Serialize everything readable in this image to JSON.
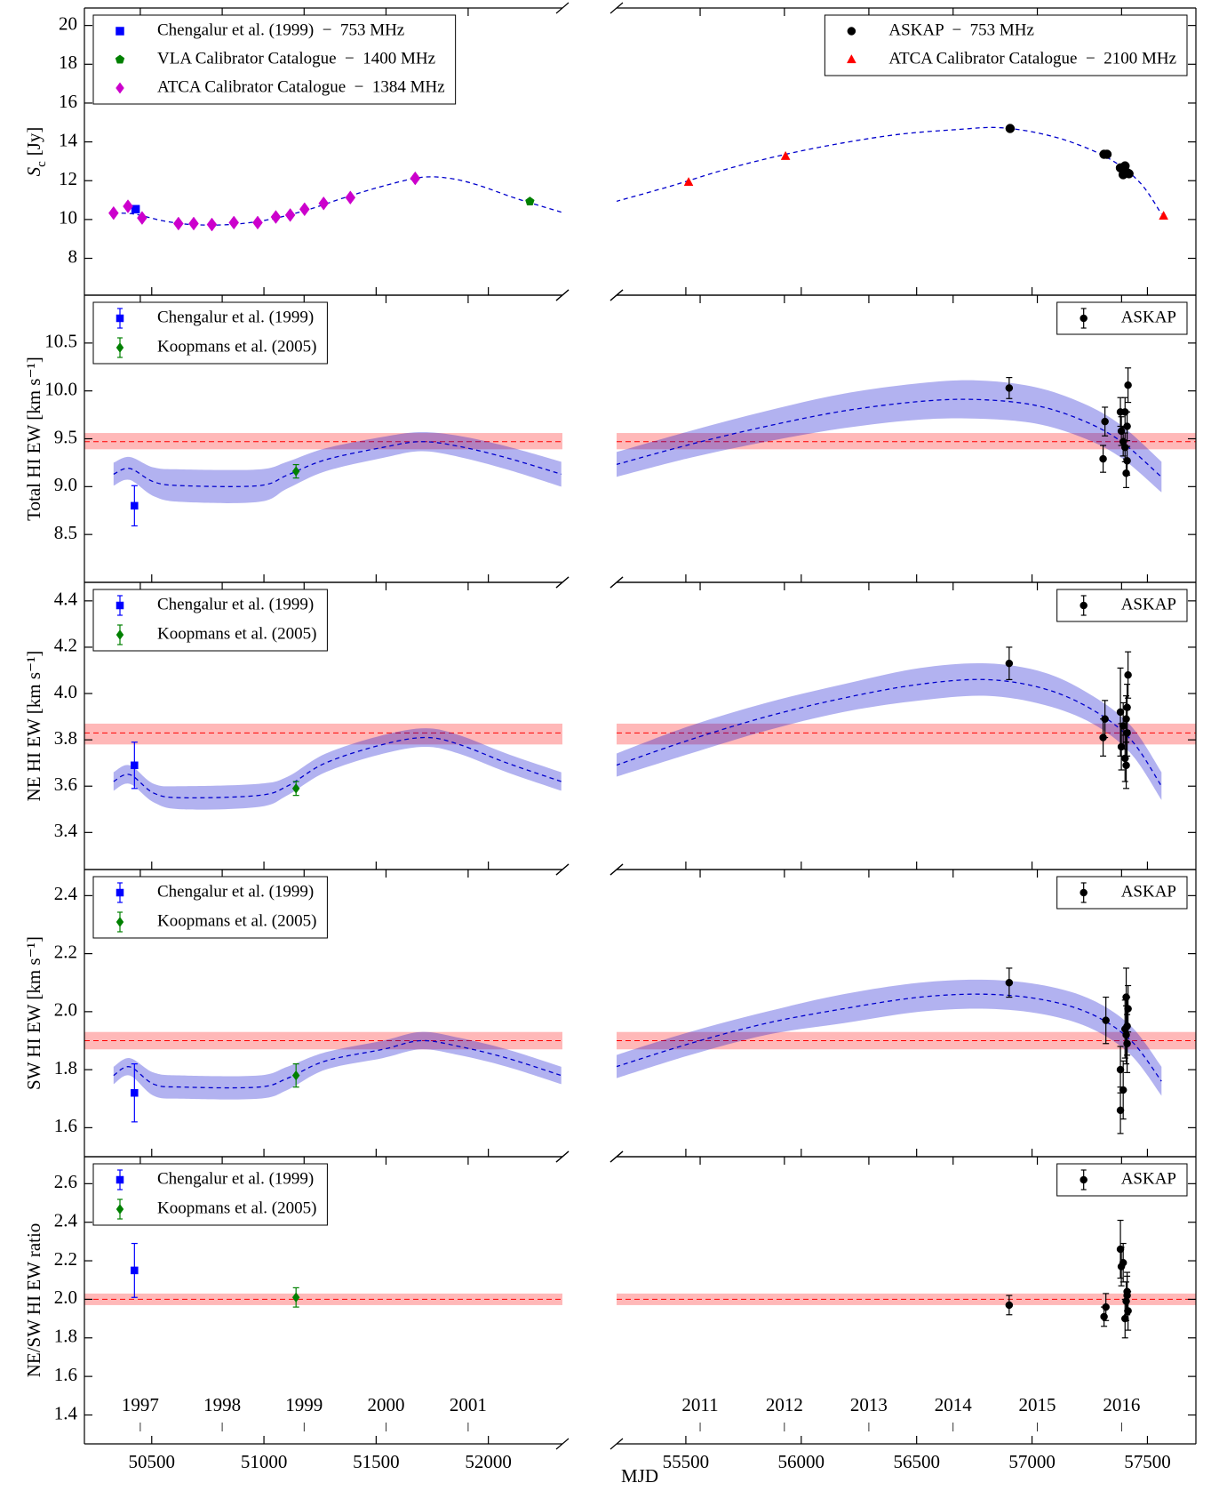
{
  "chart_data": [
    {
      "type": "scatter",
      "xlim": [
        50200,
        52330
      ],
      "ylim": [
        6.1,
        20.9
      ],
      "yticks": [
        8,
        10,
        12,
        14,
        16,
        18,
        20
      ],
      "ylabel": {
        "symbol": "S",
        "subscript": "c",
        "unit": "[Jy]"
      },
      "legend": "upper left",
      "series": [
        {
          "name": "Chengalur et al. (1999)  −  753 MHz",
          "color": "#0000ff",
          "marker": "square",
          "x": [
            50428
          ],
          "values": [
            10.53
          ]
        },
        {
          "name": "VLA Calibrator Catalogue  −  1400 MHz",
          "color": "#008000",
          "marker": "pentagon",
          "x": [
            52185
          ],
          "values": [
            10.93
          ]
        },
        {
          "name": "ATCA Calibrator Catalogue  −  1384 MHz",
          "color": "#cc00cc",
          "marker": "diamond",
          "x": [
            50330,
            50394,
            50457,
            50619,
            50687,
            50768,
            50866,
            50972,
            51053,
            51117,
            51181,
            51266,
            51385,
            51674
          ],
          "values": [
            10.33,
            10.68,
            10.08,
            9.79,
            9.79,
            9.74,
            9.84,
            9.84,
            10.13,
            10.23,
            10.53,
            10.83,
            11.13,
            12.12
          ]
        }
      ],
      "fit": {
        "color": "#0000cc",
        "x": [
          50330,
          50423,
          50551,
          50679,
          50849,
          51019,
          51189,
          51360,
          51530,
          51700,
          51828,
          51955,
          52125,
          52325
        ],
        "values": [
          10.33,
          10.28,
          9.93,
          9.74,
          9.74,
          9.99,
          10.48,
          11.13,
          11.72,
          12.17,
          12.12,
          11.77,
          11.08,
          10.38
        ]
      }
    },
    {
      "type": "scatter",
      "xlim": [
        55200,
        57710
      ],
      "ylim": [
        6.1,
        20.9
      ],
      "legend": "upper right",
      "series": [
        {
          "name": "ASKAP  −  753 MHz",
          "color": "#000000",
          "marker": "circle",
          "x": [
            56905,
            57312,
            57325,
            57383,
            57395,
            57403,
            57412,
            57420
          ],
          "values": [
            14.69,
            13.36,
            13.36,
            12.66,
            12.31,
            12.76,
            12.41,
            12.36
          ]
        },
        {
          "name": "ATCA Calibrator Catalogue  −  2100 MHz",
          "color": "#ff0000",
          "marker": "triangle",
          "x": [
            55512,
            55932,
            57570
          ],
          "values": [
            11.92,
            13.26,
            10.18
          ]
        }
      ],
      "fit": {
        "color": "#0000cc",
        "x": [
          55197,
          55434,
          55683,
          55932,
          56182,
          56431,
          56680,
          56847,
          57013,
          57179,
          57345,
          57470,
          57561
        ],
        "values": [
          10.93,
          11.72,
          12.62,
          13.36,
          13.95,
          14.4,
          14.64,
          14.74,
          14.49,
          13.95,
          13.06,
          11.87,
          10.28
        ]
      }
    },
    {
      "type": "scatter",
      "xlim": [
        50200,
        52330
      ],
      "ylim": [
        8.0,
        11.0
      ],
      "yticks": [
        8.5,
        {
          "value": 9,
          "label": "9.0"
        },
        9.5,
        {
          "value": 10,
          "label": "10.0"
        },
        10.5
      ],
      "ylabel": "Total HI EW [km s⁻¹]",
      "legend": "upper left",
      "series": [
        {
          "name": "Chengalur et al. (1999)",
          "color": "#0000ff",
          "marker": "square",
          "x": [
            50423
          ],
          "values": [
            8.8
          ],
          "errors": [
            0.21
          ]
        },
        {
          "name": "Koopmans et al. (2005)",
          "color": "#008000",
          "marker": "diamond",
          "x": [
            51143
          ],
          "values": [
            9.16
          ],
          "errors": [
            0.07
          ]
        }
      ],
      "fit": {
        "color": "#0000cc",
        "x": [
          50330,
          50402,
          50509,
          50636,
          50977,
          51104,
          51274,
          51530,
          51700,
          51870,
          52083,
          52325
        ],
        "values": [
          9.13,
          9.19,
          9.05,
          9.01,
          9.01,
          9.12,
          9.28,
          9.41,
          9.47,
          9.42,
          9.3,
          9.13
        ],
        "lower": [
          9.01,
          9.07,
          8.9,
          8.84,
          8.84,
          8.98,
          9.16,
          9.3,
          9.37,
          9.31,
          9.18,
          9.0
        ],
        "upper": [
          9.25,
          9.31,
          9.2,
          9.18,
          9.18,
          9.26,
          9.4,
          9.52,
          9.57,
          9.53,
          9.42,
          9.26
        ]
      },
      "reference": {
        "color": "#ff0000",
        "value": 9.47,
        "lower": 9.39,
        "upper": 9.56
      }
    },
    {
      "type": "scatter",
      "xlim": [
        55200,
        57710
      ],
      "ylim": [
        8.0,
        11.0
      ],
      "legend": "upper right",
      "series": [
        {
          "name": "ASKAP",
          "color": "#000000",
          "marker": "circle",
          "x": [
            56901,
            57316,
            57308,
            57383,
            57387,
            57395,
            57403,
            57403,
            57408,
            57412,
            57412,
            57416
          ],
          "values": [
            10.03,
            9.68,
            9.29,
            9.78,
            9.58,
            9.47,
            9.78,
            9.41,
            9.14,
            9.27,
            9.63,
            10.06
          ],
          "errors": [
            0.11,
            0.15,
            0.14,
            0.15,
            0.15,
            0.15,
            0.15,
            0.15,
            0.15,
            0.15,
            0.15,
            0.18
          ]
        }
      ],
      "fit": {
        "color": "#0000cc",
        "x": [
          55197,
          55517,
          55849,
          56182,
          56514,
          56763,
          57013,
          57221,
          57387,
          57561
        ],
        "values": [
          9.23,
          9.44,
          9.63,
          9.79,
          9.89,
          9.91,
          9.85,
          9.69,
          9.47,
          9.1
        ],
        "lower": [
          9.1,
          9.3,
          9.47,
          9.61,
          9.7,
          9.71,
          9.66,
          9.51,
          9.3,
          8.94
        ],
        "upper": [
          9.36,
          9.58,
          9.79,
          9.97,
          10.08,
          10.11,
          10.04,
          9.87,
          9.64,
          9.26
        ]
      },
      "reference": {
        "color": "#ff0000",
        "value": 9.47,
        "lower": 9.39,
        "upper": 9.56
      }
    },
    {
      "type": "scatter",
      "xlim": [
        50200,
        52330
      ],
      "ylim": [
        3.24,
        4.48
      ],
      "yticks": [
        3.4,
        3.6,
        3.8,
        {
          "value": 4,
          "label": "4.0"
        },
        4.2,
        4.4
      ],
      "ylabel": "NE HI EW [km s⁻¹]",
      "legend": "upper left",
      "series": [
        {
          "name": "Chengalur et al. (1999)",
          "color": "#0000ff",
          "marker": "square",
          "x": [
            50423
          ],
          "values": [
            3.69
          ],
          "errors": [
            0.1
          ]
        },
        {
          "name": "Koopmans et al. (2005)",
          "color": "#008000",
          "marker": "diamond",
          "x": [
            51143
          ],
          "values": [
            3.59
          ],
          "errors": [
            0.03
          ]
        }
      ],
      "fit": {
        "color": "#0000cc",
        "x": [
          50330,
          50402,
          50509,
          50636,
          50977,
          51104,
          51274,
          51530,
          51721,
          51870,
          52083,
          52325
        ],
        "values": [
          3.62,
          3.65,
          3.57,
          3.55,
          3.56,
          3.6,
          3.7,
          3.78,
          3.81,
          3.78,
          3.7,
          3.62
        ],
        "lower": [
          3.58,
          3.61,
          3.53,
          3.5,
          3.51,
          3.56,
          3.66,
          3.74,
          3.77,
          3.74,
          3.66,
          3.58
        ],
        "upper": [
          3.66,
          3.69,
          3.61,
          3.6,
          3.61,
          3.64,
          3.74,
          3.82,
          3.85,
          3.82,
          3.74,
          3.66
        ]
      },
      "reference": {
        "color": "#ff0000",
        "value": 3.83,
        "lower": 3.78,
        "upper": 3.87
      }
    },
    {
      "type": "scatter",
      "xlim": [
        55200,
        57710
      ],
      "ylim": [
        3.24,
        4.48
      ],
      "legend": "upper right",
      "series": [
        {
          "name": "ASKAP",
          "color": "#000000",
          "marker": "circle",
          "x": [
            56901,
            57316,
            57308,
            57383,
            57387,
            57395,
            57403,
            57408,
            57412,
            57412,
            57416,
            57408
          ],
          "values": [
            4.13,
            3.89,
            3.81,
            3.92,
            3.77,
            3.86,
            3.72,
            3.89,
            3.94,
            3.83,
            4.08,
            3.69
          ],
          "errors": [
            0.07,
            0.08,
            0.08,
            0.19,
            0.1,
            0.1,
            0.1,
            0.1,
            0.1,
            0.1,
            0.1,
            0.1
          ]
        }
      ],
      "fit": {
        "color": "#0000cc",
        "x": [
          55197,
          55517,
          55849,
          56182,
          56514,
          56805,
          57055,
          57262,
          57429,
          57561
        ],
        "values": [
          3.69,
          3.8,
          3.9,
          3.98,
          4.04,
          4.06,
          4.02,
          3.93,
          3.8,
          3.6
        ],
        "lower": [
          3.64,
          3.74,
          3.84,
          3.92,
          3.97,
          3.99,
          3.95,
          3.87,
          3.74,
          3.54
        ],
        "upper": [
          3.74,
          3.86,
          3.96,
          4.04,
          4.11,
          4.13,
          4.09,
          3.99,
          3.86,
          3.66
        ]
      },
      "reference": {
        "color": "#ff0000",
        "value": 3.83,
        "lower": 3.78,
        "upper": 3.87
      }
    },
    {
      "type": "scatter",
      "xlim": [
        50200,
        52330
      ],
      "ylim": [
        1.5,
        2.49
      ],
      "yticks": [
        1.6,
        1.8,
        {
          "value": 2,
          "label": "2.0"
        },
        2.2,
        2.4
      ],
      "ylabel": "SW HI EW [km s⁻¹]",
      "legend": "upper left",
      "series": [
        {
          "name": "Chengalur et al. (1999)",
          "color": "#0000ff",
          "marker": "square",
          "x": [
            50423
          ],
          "values": [
            1.72
          ],
          "errors": [
            0.1
          ]
        },
        {
          "name": "Koopmans et al. (2005)",
          "color": "#008000",
          "marker": "diamond",
          "x": [
            51143
          ],
          "values": [
            1.78
          ],
          "errors": [
            0.04
          ]
        }
      ],
      "fit": {
        "color": "#0000cc",
        "x": [
          50330,
          50402,
          50509,
          50636,
          50977,
          51104,
          51274,
          51530,
          51700,
          51870,
          52083,
          52325
        ],
        "values": [
          1.78,
          1.81,
          1.75,
          1.74,
          1.74,
          1.77,
          1.83,
          1.87,
          1.9,
          1.88,
          1.84,
          1.78
        ],
        "lower": [
          1.75,
          1.78,
          1.71,
          1.7,
          1.7,
          1.73,
          1.8,
          1.84,
          1.87,
          1.85,
          1.81,
          1.75
        ],
        "upper": [
          1.81,
          1.84,
          1.79,
          1.78,
          1.78,
          1.81,
          1.86,
          1.9,
          1.93,
          1.91,
          1.87,
          1.81
        ]
      },
      "reference": {
        "color": "#ff0000",
        "value": 1.9,
        "lower": 1.87,
        "upper": 1.93
      }
    },
    {
      "type": "scatter",
      "xlim": [
        55200,
        57710
      ],
      "ylim": [
        1.5,
        2.49
      ],
      "legend": "upper right",
      "series": [
        {
          "name": "ASKAP",
          "color": "#000000",
          "marker": "circle",
          "x": [
            56901,
            57320,
            57383,
            57383,
            57395,
            57403,
            57408,
            57412,
            57416,
            57412,
            57408
          ],
          "values": [
            2.1,
            1.97,
            1.8,
            1.66,
            1.73,
            1.94,
            2.05,
            1.95,
            2.01,
            1.89,
            1.92
          ],
          "errors": [
            0.05,
            0.08,
            0.08,
            0.08,
            0.1,
            0.1,
            0.1,
            0.1,
            0.08,
            0.1,
            0.1
          ]
        }
      ],
      "fit": {
        "color": "#0000cc",
        "x": [
          55197,
          55517,
          55849,
          56182,
          56514,
          56805,
          57055,
          57262,
          57429,
          57561
        ],
        "values": [
          1.81,
          1.89,
          1.96,
          2.01,
          2.05,
          2.06,
          2.04,
          1.99,
          1.9,
          1.76
        ],
        "lower": [
          1.77,
          1.85,
          1.92,
          1.96,
          2.0,
          2.01,
          1.99,
          1.94,
          1.85,
          1.71
        ],
        "upper": [
          1.85,
          1.93,
          2.0,
          2.06,
          2.1,
          2.11,
          2.09,
          2.04,
          1.95,
          1.81
        ]
      },
      "reference": {
        "color": "#ff0000",
        "value": 1.9,
        "lower": 1.87,
        "upper": 1.93
      }
    },
    {
      "type": "scatter",
      "xlim": [
        50200,
        52330
      ],
      "ylim": [
        1.25,
        2.74
      ],
      "yticks": [
        1.4,
        1.6,
        1.8,
        {
          "value": 2,
          "label": "2.0"
        },
        2.2,
        2.4,
        2.6
      ],
      "ylabel": "NE/SW HI EW ratio",
      "legend": "upper left",
      "xlabel": "MJD",
      "xticks": [
        50500,
        51000,
        51500,
        52000
      ],
      "year_ticks": [
        {
          "value": 50449,
          "label": "1997"
        },
        {
          "value": 50814,
          "label": "1998"
        },
        {
          "value": 51179,
          "label": "1999"
        },
        {
          "value": 51544,
          "label": "2000"
        },
        {
          "value": 51910,
          "label": "2001"
        }
      ],
      "series": [
        {
          "name": "Chengalur et al. (1999)",
          "color": "#0000ff",
          "marker": "square",
          "x": [
            50423
          ],
          "values": [
            2.15
          ],
          "errors": [
            0.14
          ]
        },
        {
          "name": "Koopmans et al. (2005)",
          "color": "#008000",
          "marker": "diamond",
          "x": [
            51143
          ],
          "values": [
            2.01
          ],
          "errors": [
            0.05
          ]
        }
      ],
      "reference": {
        "color": "#ff0000",
        "value": 2.0,
        "lower": 1.97,
        "upper": 2.03
      }
    },
    {
      "type": "scatter",
      "xlim": [
        55200,
        57710
      ],
      "ylim": [
        1.25,
        2.74
      ],
      "legend": "upper right",
      "xticks": [
        55500,
        56000,
        56500,
        57000,
        57500
      ],
      "year_ticks": [
        {
          "value": 55562,
          "label": "2011"
        },
        {
          "value": 55927,
          "label": "2012"
        },
        {
          "value": 56293,
          "label": "2013"
        },
        {
          "value": 56658,
          "label": "2014"
        },
        {
          "value": 57023,
          "label": "2015"
        },
        {
          "value": 57388,
          "label": "2016"
        }
      ],
      "series": [
        {
          "name": "ASKAP",
          "color": "#000000",
          "marker": "circle",
          "x": [
            56901,
            57312,
            57320,
            57383,
            57387,
            57395,
            57403,
            57408,
            57412,
            57416,
            57412
          ],
          "values": [
            1.97,
            1.91,
            1.96,
            2.26,
            2.17,
            2.19,
            1.9,
            1.99,
            2.02,
            1.94,
            2.04
          ],
          "errors": [
            0.05,
            0.05,
            0.07,
            0.15,
            0.1,
            0.1,
            0.1,
            0.1,
            0.1,
            0.1,
            0.1
          ]
        }
      ],
      "reference": {
        "color": "#ff0000",
        "value": 2.0,
        "lower": 1.97,
        "upper": 2.03
      }
    }
  ]
}
